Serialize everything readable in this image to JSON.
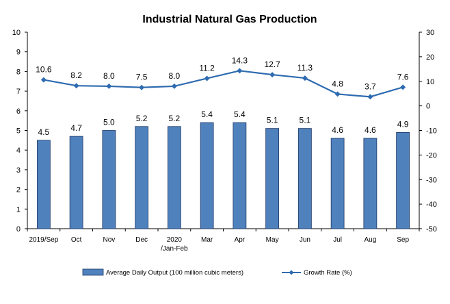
{
  "chart_data": {
    "type": "bar",
    "title": "Industrial Natural Gas Production",
    "categories": [
      [
        "2019/Sep"
      ],
      [
        "Oct"
      ],
      [
        "Nov"
      ],
      [
        "Dec"
      ],
      [
        "2020",
        "/Jan-Feb"
      ],
      [
        "Mar"
      ],
      [
        "Apr"
      ],
      [
        "May"
      ],
      [
        "Jun"
      ],
      [
        "Jul"
      ],
      [
        "Aug"
      ],
      [
        "Sep"
      ]
    ],
    "series": [
      {
        "name": "Average Daily Output (100 million cubic meters)",
        "type": "bar",
        "axis": "left",
        "color": "#4f81bd",
        "values": [
          4.5,
          4.7,
          5.0,
          5.2,
          5.2,
          5.4,
          5.4,
          5.1,
          5.1,
          4.6,
          4.6,
          4.9
        ],
        "labels": [
          "4.5",
          "4.7",
          "5.0",
          "5.2",
          "5.2",
          "5.4",
          "5.4",
          "5.1",
          "5.1",
          "4.6",
          "4.6",
          "4.9"
        ]
      },
      {
        "name": "Growth Rate (%)",
        "type": "line",
        "axis": "right",
        "color": "#2e6bb0",
        "values": [
          10.6,
          8.2,
          8.0,
          7.5,
          8.0,
          11.2,
          14.3,
          12.7,
          11.3,
          4.8,
          3.7,
          7.6
        ],
        "labels": [
          "10.6",
          "8.2",
          "8.0",
          "7.5",
          "8.0",
          "11.2",
          "14.3",
          "12.7",
          "11.3",
          "4.8",
          "3.7",
          "7.6"
        ]
      }
    ],
    "y_left": {
      "min": 0,
      "max": 10,
      "ticks": [
        "0",
        "1",
        "2",
        "3",
        "4",
        "5",
        "6",
        "7",
        "8",
        "9",
        "10"
      ]
    },
    "y_right": {
      "min": -50,
      "max": 30,
      "ticks": [
        "-50",
        "-40",
        "-30",
        "-20",
        "-10",
        "0",
        "10",
        "20",
        "30"
      ]
    },
    "legend_position": "bottom",
    "grid": false
  }
}
